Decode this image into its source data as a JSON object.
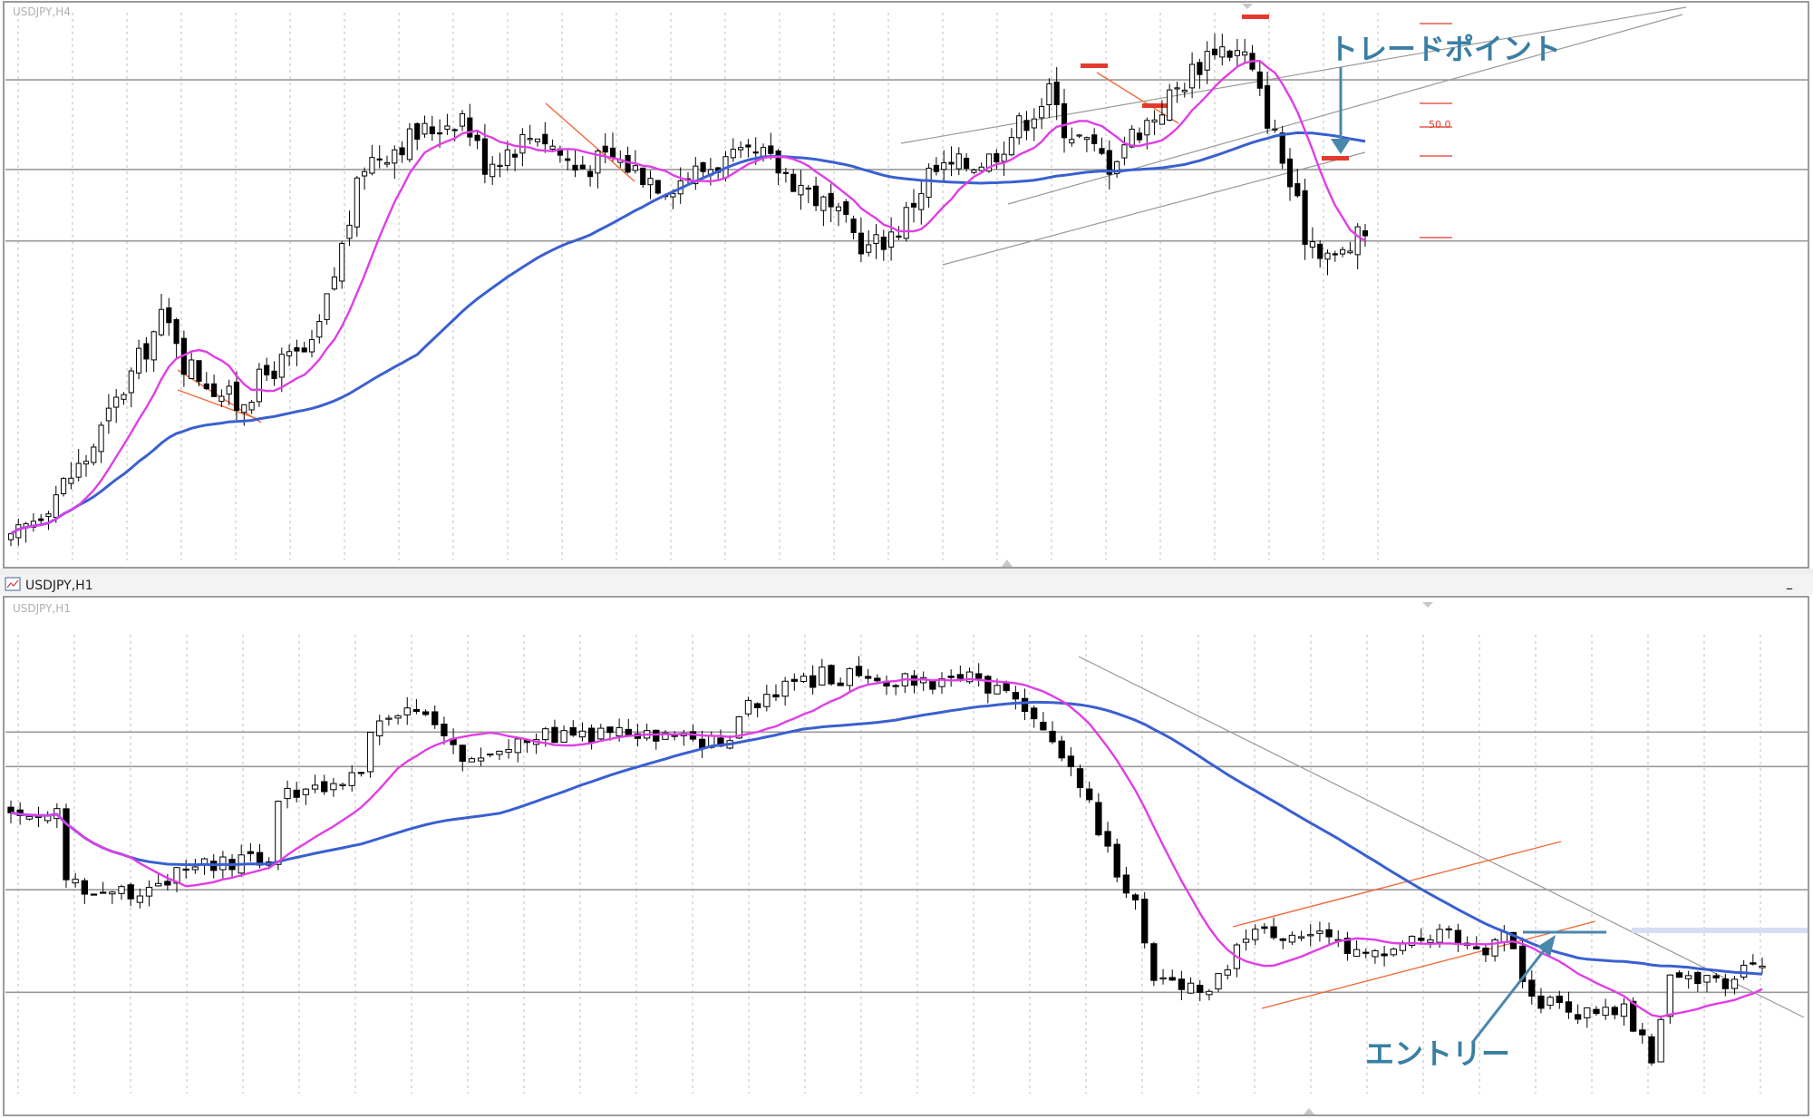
{
  "colors": {
    "ma_fast": "#e03ee6",
    "ma_slow": "#3a5fd0",
    "annotation_text": "#3a7fa3",
    "annotation_arrow": "#4a87ad",
    "marker_red": "#e23b2e",
    "trend_line_orange": "#f06a3a",
    "channel_line": "#999999",
    "hline": "#9a9a9a",
    "grid": "#bdbdbd"
  },
  "top_panel": {
    "label": "USDJPY,H4",
    "fibo_label": "50.0",
    "annotation": "トレードポイント"
  },
  "bottom_panel": {
    "title": "USDJPY,H1",
    "label": "USDJPY,H1",
    "annotation": "エントリー",
    "close_glyph": "–"
  },
  "chart_data": [
    {
      "type": "candlestick",
      "title": "USDJPY,H4",
      "symbol": "USDJPY",
      "timeframe": "H4",
      "ylim": [
        0,
        100
      ],
      "bar_count": 180,
      "waypoints": [
        [
          0,
          2
        ],
        [
          10,
          18
        ],
        [
          20,
          44
        ],
        [
          22,
          41
        ],
        [
          23,
          36
        ],
        [
          30,
          28
        ],
        [
          35,
          35
        ],
        [
          40,
          38
        ],
        [
          42,
          47
        ],
        [
          47,
          73
        ],
        [
          52,
          77
        ],
        [
          60,
          82
        ],
        [
          63,
          73
        ],
        [
          70,
          79
        ],
        [
          75,
          72
        ],
        [
          80,
          74
        ],
        [
          87,
          69
        ],
        [
          94,
          73
        ],
        [
          100,
          74
        ],
        [
          106,
          68
        ],
        [
          114,
          57
        ],
        [
          118,
          61
        ],
        [
          122,
          71
        ],
        [
          130,
          74
        ],
        [
          138,
          86
        ],
        [
          140,
          80
        ],
        [
          146,
          73
        ],
        [
          148,
          77
        ],
        [
          152,
          82
        ],
        [
          160,
          95
        ],
        [
          164,
          93
        ],
        [
          168,
          78
        ],
        [
          172,
          60
        ],
        [
          176,
          55
        ],
        [
          180,
          60
        ]
      ],
      "series": [
        {
          "name": "",
          "kind": "moving-average-fast"
        },
        {
          "name": "",
          "kind": "moving-average-slow"
        }
      ],
      "horizontal_levels": [
        88.5,
        71.8,
        58.5
      ],
      "annotations": [
        "トレードポイント",
        "50.0"
      ]
    },
    {
      "type": "candlestick",
      "title": "USDJPY,H1",
      "symbol": "USDJPY",
      "timeframe": "H1",
      "ylim": [
        0,
        100
      ],
      "bar_count": 152,
      "waypoints": [
        [
          0,
          62
        ],
        [
          5,
          61
        ],
        [
          6,
          47
        ],
        [
          10,
          43
        ],
        [
          15,
          45
        ],
        [
          20,
          49
        ],
        [
          28,
          51
        ],
        [
          29,
          65
        ],
        [
          38,
          70
        ],
        [
          39,
          80
        ],
        [
          44,
          84
        ],
        [
          46,
          80
        ],
        [
          50,
          73
        ],
        [
          55,
          78
        ],
        [
          65,
          79
        ],
        [
          70,
          78
        ],
        [
          78,
          77
        ],
        [
          80,
          86
        ],
        [
          88,
          92
        ],
        [
          100,
          91
        ],
        [
          104,
          91
        ],
        [
          110,
          85
        ],
        [
          115,
          72
        ],
        [
          120,
          49
        ],
        [
          122,
          41
        ],
        [
          124,
          25
        ],
        [
          130,
          22
        ],
        [
          134,
          34
        ],
        [
          140,
          35
        ],
        [
          148,
          29
        ],
        [
          155,
          35
        ],
        [
          160,
          31
        ],
        [
          162,
          34
        ],
        [
          165,
          20
        ],
        [
          170,
          17
        ],
        [
          175,
          18
        ],
        [
          178,
          7
        ],
        [
          180,
          26
        ],
        [
          186,
          22
        ],
        [
          190,
          29
        ]
      ],
      "series": [
        {
          "name": "",
          "kind": "moving-average-fast"
        },
        {
          "name": "",
          "kind": "moving-average-slow"
        }
      ],
      "horizontal_levels": [
        79.5,
        71.8,
        44.3,
        21.4
      ],
      "annotations": [
        "エントリー"
      ]
    }
  ]
}
